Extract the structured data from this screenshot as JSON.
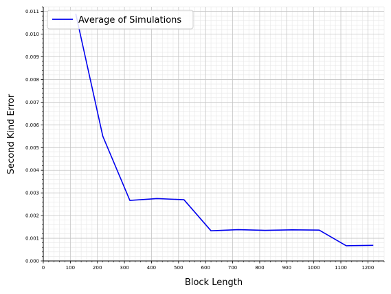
{
  "chart_data": {
    "type": "line",
    "title": "",
    "xlabel": "Block Length",
    "ylabel": "Second Kind Error",
    "xlim": [
      0,
      1260
    ],
    "ylim": [
      0,
      0.0112
    ],
    "x_ticks": [
      0,
      100,
      200,
      300,
      400,
      500,
      600,
      700,
      800,
      900,
      1000,
      1100,
      1200
    ],
    "y_ticks": [
      "0.000",
      "0.001",
      "0.002",
      "0.003",
      "0.004",
      "0.005",
      "0.006",
      "0.007",
      "0.008",
      "0.009",
      "0.010",
      "0.011"
    ],
    "grid": true,
    "minor_grid": true,
    "legend_position": "top-left",
    "series": [
      {
        "name": "Average of Simulations",
        "color": "#0000ee",
        "x": [
          120,
          220,
          320,
          420,
          520,
          620,
          720,
          820,
          920,
          1020,
          1120,
          1220
        ],
        "y": [
          0.0109,
          0.0055,
          0.00267,
          0.00275,
          0.0027,
          0.00133,
          0.00138,
          0.00135,
          0.00137,
          0.00136,
          0.00067,
          0.00069
        ]
      }
    ]
  }
}
